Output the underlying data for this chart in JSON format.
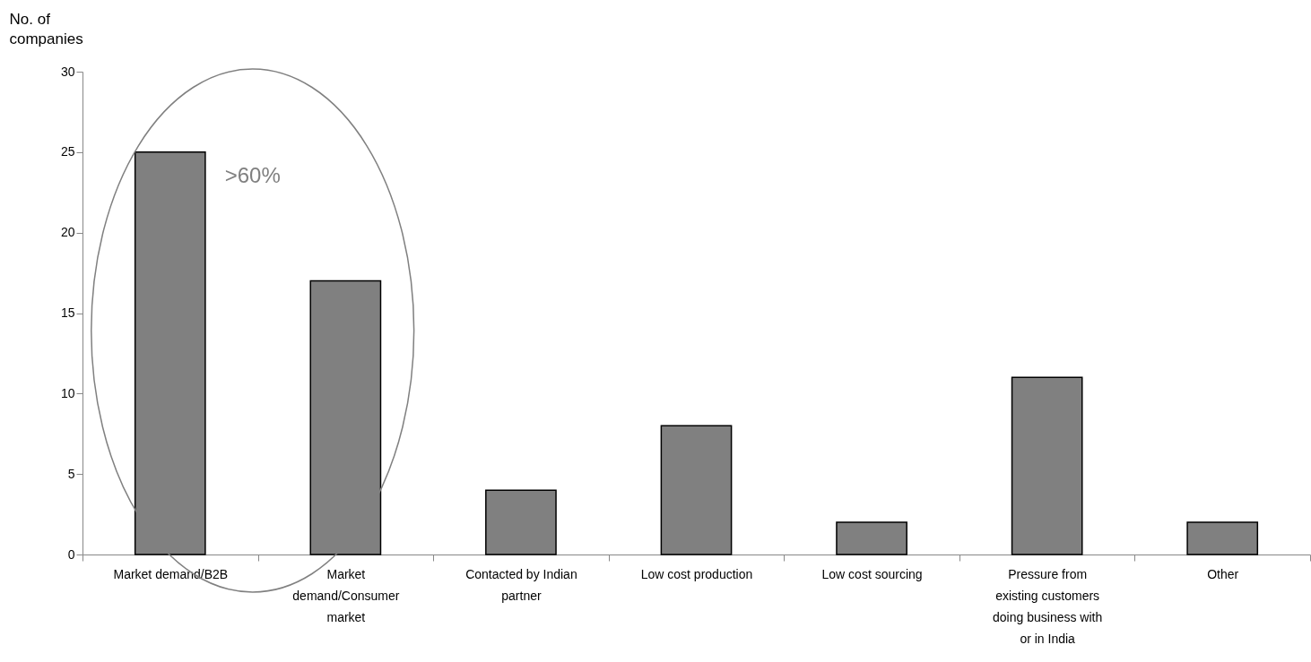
{
  "chart_data": {
    "type": "bar",
    "ylabel": "No. of companies",
    "categories": [
      "Market demand/B2B",
      "Market demand/Consumer market",
      "Contacted by Indian partner",
      "Low cost production",
      "Low cost sourcing",
      "Pressure from existing customers doing business with or in India",
      "Other"
    ],
    "values": [
      25,
      17,
      4,
      8,
      2,
      11,
      2
    ],
    "color": "#808080",
    "ylim": [
      0,
      30
    ],
    "yticks": [
      0,
      5,
      10,
      15,
      20,
      25,
      30
    ],
    "grid": false,
    "annotations": [
      ">60%"
    ]
  }
}
